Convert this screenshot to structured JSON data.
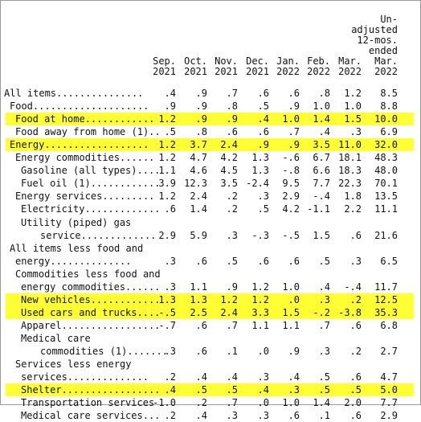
{
  "highlight_color": "#ffff33",
  "columns": [
    {
      "key": "sep2021",
      "lines": [
        "Sep.",
        "2021"
      ]
    },
    {
      "key": "oct2021",
      "lines": [
        "Oct.",
        "2021"
      ]
    },
    {
      "key": "nov2021",
      "lines": [
        "Nov.",
        "2021"
      ]
    },
    {
      "key": "dec2021",
      "lines": [
        "Dec.",
        "2021"
      ]
    },
    {
      "key": "jan2022",
      "lines": [
        "Jan.",
        "2022"
      ]
    },
    {
      "key": "feb2022",
      "lines": [
        "Feb.",
        "2022"
      ]
    },
    {
      "key": "mar2022",
      "lines": [
        "Mar.",
        "2022"
      ]
    },
    {
      "key": "unadjusted_12mos",
      "lines": [
        "Un-",
        "adjusted",
        "12-mos.",
        "ended",
        "Mar.",
        "2022"
      ]
    }
  ],
  "rows": [
    {
      "label": "All items...............",
      "indent": 0,
      "highlight": false,
      "values": [
        ".4",
        ".9",
        ".7",
        ".6",
        ".6",
        ".8",
        "1.2",
        "8.5"
      ]
    },
    {
      "label": "Food....................",
      "indent": 1,
      "highlight": false,
      "values": [
        ".9",
        ".9",
        ".8",
        ".5",
        ".9",
        "1.0",
        "1.0",
        "8.8"
      ]
    },
    {
      "label": "Food at home............",
      "indent": 2,
      "highlight": true,
      "values": [
        "1.2",
        ".9",
        ".9",
        ".4",
        "1.0",
        "1.4",
        "1.5",
        "10.0"
      ]
    },
    {
      "label": "Food away from home (1)..",
      "indent": 2,
      "highlight": false,
      "values": [
        ".5",
        ".8",
        ".6",
        ".6",
        ".7",
        ".4",
        ".3",
        "6.9"
      ]
    },
    {
      "label": "Energy..................",
      "indent": 1,
      "highlight": true,
      "values": [
        "1.2",
        "3.7",
        "2.4",
        ".9",
        ".9",
        "3.5",
        "11.0",
        "32.0"
      ]
    },
    {
      "label": "Energy commodities......",
      "indent": 2,
      "highlight": false,
      "values": [
        "1.2",
        "4.7",
        "4.2",
        "1.3",
        "-.6",
        "6.7",
        "18.1",
        "48.3"
      ]
    },
    {
      "label": "Gasoline (all types)....",
      "indent": 3,
      "highlight": false,
      "values": [
        "1.1",
        "4.6",
        "4.5",
        "1.3",
        "-.8",
        "6.6",
        "18.3",
        "48.0"
      ]
    },
    {
      "label": "Fuel oil (1)............",
      "indent": 3,
      "highlight": false,
      "values": [
        "3.9",
        "12.3",
        "3.5",
        "-2.4",
        "9.5",
        "7.7",
        "22.3",
        "70.1"
      ]
    },
    {
      "label": "Energy services.........",
      "indent": 2,
      "highlight": false,
      "values": [
        "1.2",
        "2.4",
        ".2",
        ".3",
        "2.9",
        "-.4",
        "1.8",
        "13.5"
      ]
    },
    {
      "label": "Electricity.............",
      "indent": 3,
      "highlight": false,
      "values": [
        ".6",
        "1.4",
        ".2",
        ".5",
        "4.2",
        "-1.1",
        "2.2",
        "11.1"
      ]
    },
    {
      "label": "Utility (piped) gas",
      "indent": 3,
      "highlight": false,
      "values": [
        "",
        "",
        "",
        "",
        "",
        "",
        "",
        ""
      ]
    },
    {
      "label": "service.............",
      "indent": 4,
      "highlight": false,
      "values": [
        "2.9",
        "5.9",
        ".3",
        "-.3",
        "-.5",
        "1.5",
        ".6",
        "21.6"
      ]
    },
    {
      "label": "All items less food and",
      "indent": 1,
      "highlight": false,
      "values": [
        "",
        "",
        "",
        "",
        "",
        "",
        "",
        ""
      ]
    },
    {
      "label": "energy..............",
      "indent": 2,
      "highlight": false,
      "values": [
        ".3",
        ".6",
        ".5",
        ".6",
        ".6",
        ".5",
        ".3",
        "6.5"
      ]
    },
    {
      "label": "Commodities less food and",
      "indent": 2,
      "highlight": false,
      "values": [
        "",
        "",
        "",
        "",
        "",
        "",
        "",
        ""
      ]
    },
    {
      "label": "energy commodities......",
      "indent": 3,
      "highlight": false,
      "values": [
        ".3",
        "1.1",
        ".9",
        "1.2",
        "1.0",
        ".4",
        "-.4",
        "11.7"
      ]
    },
    {
      "label": "New vehicles............",
      "indent": 3,
      "highlight": true,
      "values": [
        "1.3",
        "1.3",
        "1.2",
        "1.2",
        ".0",
        ".3",
        ".2",
        "12.5"
      ]
    },
    {
      "label": "Used cars and trucks....",
      "indent": 3,
      "highlight": true,
      "values": [
        "-.5",
        "2.5",
        "2.4",
        "3.3",
        "1.5",
        "-.2",
        "-3.8",
        "35.3"
      ]
    },
    {
      "label": "Apparel.................",
      "indent": 3,
      "highlight": false,
      "values": [
        "-.7",
        ".6",
        ".7",
        "1.1",
        "1.1",
        ".7",
        ".6",
        "6.8"
      ]
    },
    {
      "label": "Medical care",
      "indent": 3,
      "highlight": false,
      "values": [
        "",
        "",
        "",
        "",
        "",
        "",
        "",
        ""
      ]
    },
    {
      "label": "commodities (1).......",
      "indent": 4,
      "highlight": false,
      "values": [
        ".3",
        ".6",
        ".1",
        ".0",
        ".9",
        ".3",
        ".2",
        "2.7"
      ]
    },
    {
      "label": "Services less energy",
      "indent": 2,
      "highlight": false,
      "values": [
        "",
        "",
        "",
        "",
        "",
        "",
        "",
        ""
      ]
    },
    {
      "label": "services..............",
      "indent": 3,
      "highlight": false,
      "values": [
        ".2",
        ".4",
        ".4",
        ".3",
        ".4",
        ".5",
        ".6",
        "4.7"
      ]
    },
    {
      "label": "Shelter.................",
      "indent": 3,
      "highlight": true,
      "values": [
        ".4",
        ".5",
        ".5",
        ".4",
        ".3",
        ".5",
        ".5",
        "5.0"
      ]
    },
    {
      "label": "Transportation services",
      "indent": 3,
      "highlight": false,
      "values": [
        "-1.0",
        ".2",
        ".7",
        ".0",
        "1.0",
        "1.4",
        "2.0",
        "7.7"
      ]
    },
    {
      "label": "Medical care services...",
      "indent": 3,
      "highlight": false,
      "values": [
        ".2",
        ".4",
        ".3",
        ".3",
        ".6",
        ".1",
        ".6",
        "2.9"
      ]
    }
  ]
}
